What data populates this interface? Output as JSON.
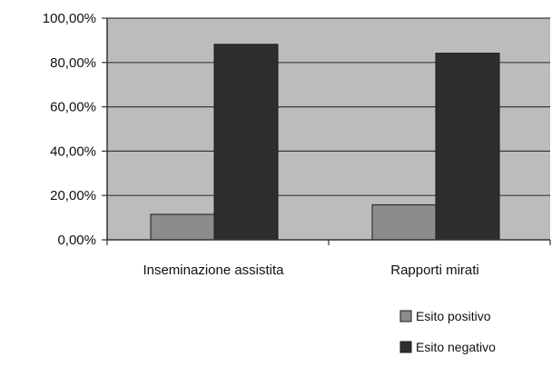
{
  "chart_data": {
    "type": "bar",
    "categories": [
      "Inseminazione assistita",
      "Rapporti mirati"
    ],
    "series": [
      {
        "name": "Esito positivo",
        "values": [
          11.5,
          15.8
        ],
        "color": "#8c8c8c"
      },
      {
        "name": "Esito negativo",
        "values": [
          88.2,
          84.2
        ],
        "color": "#2e2e2e"
      }
    ],
    "yticks": [
      "0,00%",
      "20,00%",
      "40,00%",
      "60,00%",
      "80,00%",
      "100,00%"
    ],
    "ylim": [
      0,
      100
    ],
    "grid": true,
    "legend_position": "bottom-right",
    "plot_background": "#bcbcbc"
  }
}
